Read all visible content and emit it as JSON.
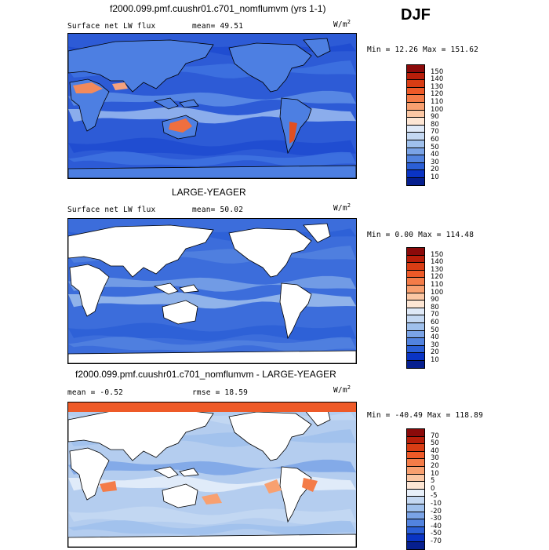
{
  "season": "DJF",
  "units_label": "W/m",
  "units_sup": "2",
  "panels": [
    {
      "title": "f2000.099.pmf.cuushr01.c701_nomflumvm (yrs 1-1)",
      "left_label": "Surface net LW flux",
      "stat1": "mean=  49.51",
      "stat2": "",
      "minmax": "Min =  12.26 Max = 151.62",
      "colorbar_labels": [
        "150",
        "140",
        "130",
        "120",
        "110",
        "100",
        "90",
        "80",
        "70",
        "60",
        "50",
        "40",
        "30",
        "20",
        "10"
      ],
      "colorbar_colors": [
        "#8b0a0a",
        "#b81e0a",
        "#d93d14",
        "#ee5a28",
        "#f47c48",
        "#f8a070",
        "#fbc7a4",
        "#fde6d4",
        "#dfe9f7",
        "#c4d8f2",
        "#9fc0ec",
        "#7aa3e6",
        "#5283df",
        "#2b5fd6",
        "#0a34c4",
        "#061f8f"
      ],
      "map_palette": [
        "#1f4bd0",
        "#3f73e1",
        "#5f8fe6",
        "#9cbcf0"
      ],
      "map_bg": "#2d5bd6",
      "land_white": false
    },
    {
      "title": "LARGE-YEAGER",
      "left_label": "Surface net LW flux",
      "stat1": "mean=  50.02",
      "stat2": "",
      "minmax": "Min =   0.00 Max = 114.48",
      "colorbar_labels": [
        "150",
        "140",
        "130",
        "120",
        "110",
        "100",
        "90",
        "80",
        "70",
        "60",
        "50",
        "40",
        "30",
        "20",
        "10"
      ],
      "colorbar_colors": [
        "#8b0a0a",
        "#b81e0a",
        "#d93d14",
        "#ee5a28",
        "#f47c48",
        "#f8a070",
        "#fbc7a4",
        "#fde6d4",
        "#dfe9f7",
        "#c4d8f2",
        "#9fc0ec",
        "#7aa3e6",
        "#5283df",
        "#2b5fd6",
        "#0a34c4",
        "#061f8f"
      ],
      "map_palette": [
        "#2b5fd6",
        "#5283df",
        "#7aa3e6",
        "#9fc0ec"
      ],
      "map_bg": "#3c6ddb",
      "land_white": true
    },
    {
      "title": "f2000.099.pmf.cuushr01.c701_nomflumvm - LARGE-YEAGER",
      "left_label": "mean =  -0.52",
      "stat1": "rmse =  18.59",
      "stat2": "",
      "minmax": "Min = -40.49 Max = 118.89",
      "colorbar_labels": [
        "70",
        "50",
        "40",
        "30",
        "20",
        "10",
        "5",
        "0",
        "-5",
        "-10",
        "-20",
        "-30",
        "-40",
        "-50",
        "-70"
      ],
      "colorbar_colors": [
        "#8b0a0a",
        "#b81e0a",
        "#d93d14",
        "#ee5a28",
        "#f47c48",
        "#f8a070",
        "#fbc7a4",
        "#fde6d4",
        "#e8f0fa",
        "#c4d8f2",
        "#9fc0ec",
        "#7aa3e6",
        "#5283df",
        "#2b5fd6",
        "#0a34c4",
        "#061f8f"
      ],
      "map_palette": [
        "#c4d8f2",
        "#9fc0ec",
        "#7aa3e6",
        "#e8f0fa"
      ],
      "map_bg": "#b4cdef",
      "land_white": true
    }
  ]
}
